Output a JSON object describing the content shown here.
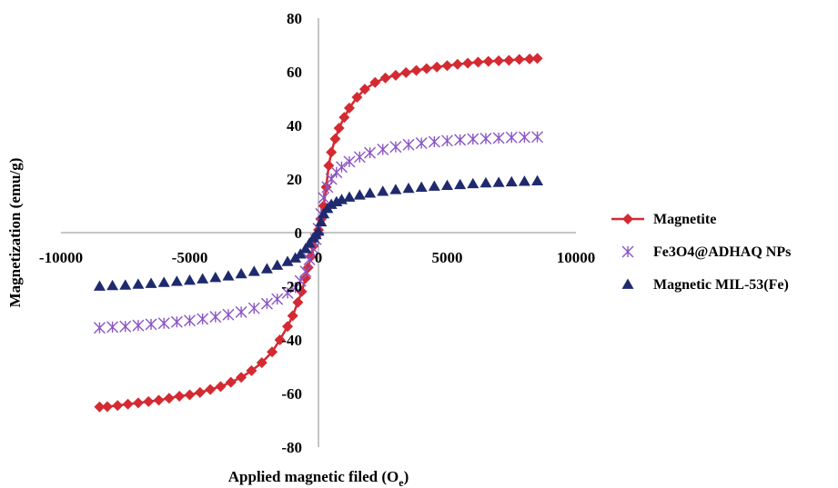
{
  "chart_data": {
    "type": "scatter",
    "title": "",
    "xlabel": "Applied magnetic filed (O",
    "xlabel_subscript": "e",
    "ylabel": "Magnetization (emu/g)",
    "xlim": [
      -10000,
      10000
    ],
    "ylim": [
      -80,
      80
    ],
    "x_ticks": [
      -10000,
      -5000,
      0,
      5000,
      10000
    ],
    "x_tick_labels": [
      "-10000",
      "-5000",
      "0",
      "5000",
      "10000"
    ],
    "y_ticks": [
      -80,
      -60,
      -40,
      -20,
      0,
      20,
      40,
      60,
      80
    ],
    "y_tick_labels": [
      "-80",
      "-60",
      "-40",
      "-20",
      "0",
      "20",
      "40",
      "60",
      "80"
    ],
    "grid": false,
    "legend_position": "right",
    "series": [
      {
        "name": "Magnetite",
        "marker": "diamond-line",
        "color": "#d42a32",
        "x": [
          -8500,
          -8200,
          -7800,
          -7400,
          -7000,
          -6600,
          -6200,
          -5800,
          -5400,
          -5000,
          -4600,
          -4200,
          -3800,
          -3400,
          -3000,
          -2600,
          -2200,
          -1800,
          -1500,
          -1200,
          -1000,
          -800,
          -650,
          -500,
          -400,
          -300,
          -200,
          -100,
          0,
          100,
          200,
          300,
          400,
          500,
          650,
          800,
          1000,
          1200,
          1500,
          1800,
          2200,
          2600,
          3000,
          3400,
          3800,
          4200,
          4600,
          5000,
          5400,
          5800,
          6200,
          6600,
          7000,
          7400,
          7800,
          8200,
          8500
        ],
        "y": [
          -65,
          -64.9,
          -64.5,
          -64,
          -63.5,
          -63,
          -62.5,
          -61.8,
          -61,
          -60.5,
          -59.6,
          -58.5,
          -57.4,
          -55.8,
          -54,
          -51.5,
          -48.5,
          -44.5,
          -40,
          -35,
          -31,
          -26,
          -22,
          -17,
          -13,
          -9,
          -5,
          -1.5,
          1,
          5,
          10,
          17,
          25,
          30,
          35,
          39,
          43,
          46.5,
          50.5,
          53.5,
          56,
          57.7,
          58.7,
          59.7,
          60.5,
          61.2,
          61.8,
          62.3,
          62.8,
          63.2,
          63.6,
          63.9,
          64.1,
          64.3,
          64.6,
          64.8,
          65
        ]
      },
      {
        "name": "Fe3O4@ADHAQ NPs",
        "marker": "asterisk",
        "color": "#8a55c4",
        "x": [
          -8500,
          -8000,
          -7500,
          -7000,
          -6500,
          -6000,
          -5500,
          -5000,
          -4500,
          -4000,
          -3500,
          -3000,
          -2500,
          -2000,
          -1600,
          -1200,
          -900,
          -700,
          -500,
          -350,
          -200,
          -100,
          0,
          100,
          200,
          350,
          500,
          700,
          900,
          1200,
          1600,
          2000,
          2500,
          3000,
          3500,
          4000,
          4500,
          5000,
          5500,
          6000,
          6500,
          7000,
          7500,
          8000,
          8500
        ],
        "y": [
          -35.5,
          -35.2,
          -35,
          -34.6,
          -34.2,
          -33.8,
          -33.3,
          -32.8,
          -32.2,
          -31.4,
          -30.6,
          -29.6,
          -28.2,
          -26.5,
          -24.8,
          -22.5,
          -20.5,
          -18,
          -14.5,
          -10,
          -6,
          -2.5,
          1.5,
          7,
          13,
          17,
          20,
          22.5,
          24.5,
          26.5,
          28.2,
          29.8,
          31,
          32,
          32.8,
          33.4,
          33.9,
          34.3,
          34.6,
          34.9,
          35.1,
          35.3,
          35.5,
          35.6,
          35.7
        ]
      },
      {
        "name": "Magnetic MIL-53(Fe)",
        "marker": "triangle",
        "color": "#1f2a6e",
        "x": [
          -8500,
          -8000,
          -7500,
          -7000,
          -6500,
          -6000,
          -5500,
          -5000,
          -4500,
          -4000,
          -3500,
          -3000,
          -2500,
          -2000,
          -1600,
          -1200,
          -900,
          -700,
          -500,
          -350,
          -200,
          -100,
          0,
          100,
          200,
          350,
          500,
          700,
          900,
          1200,
          1600,
          2000,
          2500,
          3000,
          3500,
          4000,
          4500,
          5000,
          5500,
          6000,
          6500,
          7000,
          7500,
          8000,
          8500
        ],
        "y": [
          -20,
          -19.8,
          -19.6,
          -19.3,
          -19,
          -18.6,
          -18.2,
          -17.8,
          -17.3,
          -16.8,
          -16.2,
          -15.4,
          -14.5,
          -13.5,
          -12.2,
          -10.8,
          -9.5,
          -8,
          -6,
          -4,
          -2,
          -0.8,
          0.5,
          4,
          7,
          9,
          10.5,
          11.5,
          12.3,
          13.2,
          14,
          14.7,
          15.4,
          16,
          16.5,
          16.9,
          17.3,
          17.6,
          17.9,
          18.2,
          18.5,
          18.7,
          18.9,
          19.1,
          19.3
        ]
      }
    ]
  }
}
